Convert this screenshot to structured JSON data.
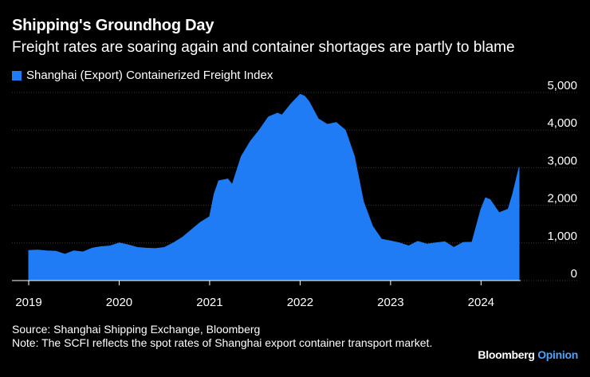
{
  "header": {
    "title": "Shipping's Groundhog Day",
    "subtitle": "Freight rates are soaring again and container shortages are partly to blame"
  },
  "footer": {
    "source": "Source: Shanghai Shipping Exchange, Bloomberg",
    "note": "Note: The SCFI reflects the spot rates of Shanghai export container transport market.",
    "brand": "Bloomberg",
    "brand_suffix": "Opinion"
  },
  "colors": {
    "background": "#000000",
    "series": "#1f7cf5",
    "text": "#ffffff",
    "brand_accent": "#4fa3ff"
  },
  "chart_data": {
    "type": "area",
    "title": "Shipping's Groundhog Day",
    "xlabel": "",
    "ylabel": "",
    "ylim": [
      0,
      5000
    ],
    "xlim": [
      2019.0,
      2024.42
    ],
    "yticks": [
      0,
      1000,
      2000,
      3000,
      4000,
      5000
    ],
    "ytick_labels": [
      "0",
      "1,000",
      "2,000",
      "3,000",
      "4,000",
      "5,000"
    ],
    "xticks": [
      2019,
      2020,
      2021,
      2022,
      2023,
      2024
    ],
    "xtick_labels": [
      "2019",
      "2020",
      "2021",
      "2022",
      "2023",
      "2024"
    ],
    "grid": true,
    "legend_position": "top-left",
    "series": [
      {
        "name": "Shanghai (Export) Containerized Freight Index",
        "x": [
          2019.0,
          2019.1,
          2019.2,
          2019.3,
          2019.4,
          2019.5,
          2019.6,
          2019.7,
          2019.8,
          2019.9,
          2020.0,
          2020.1,
          2020.2,
          2020.3,
          2020.4,
          2020.5,
          2020.6,
          2020.7,
          2020.8,
          2020.9,
          2021.0,
          2021.05,
          2021.1,
          2021.2,
          2021.25,
          2021.35,
          2021.45,
          2021.55,
          2021.65,
          2021.75,
          2021.8,
          2021.9,
          2022.0,
          2022.05,
          2022.1,
          2022.2,
          2022.3,
          2022.4,
          2022.5,
          2022.6,
          2022.7,
          2022.8,
          2022.9,
          2023.0,
          2023.1,
          2023.2,
          2023.3,
          2023.4,
          2023.5,
          2023.6,
          2023.7,
          2023.8,
          2023.9,
          2024.0,
          2024.05,
          2024.1,
          2024.2,
          2024.3,
          2024.35,
          2024.42
        ],
        "values": [
          800,
          810,
          790,
          780,
          700,
          790,
          760,
          860,
          900,
          920,
          1000,
          950,
          880,
          860,
          850,
          880,
          1000,
          1150,
          1350,
          1550,
          1700,
          2300,
          2650,
          2700,
          2550,
          3300,
          3700,
          4000,
          4350,
          4450,
          4400,
          4700,
          4950,
          4900,
          4750,
          4300,
          4150,
          4200,
          4000,
          3300,
          2100,
          1450,
          1100,
          1050,
          1000,
          920,
          1040,
          970,
          1000,
          1030,
          880,
          1010,
          1020,
          1900,
          2200,
          2150,
          1800,
          1900,
          2300,
          3000
        ]
      }
    ]
  }
}
